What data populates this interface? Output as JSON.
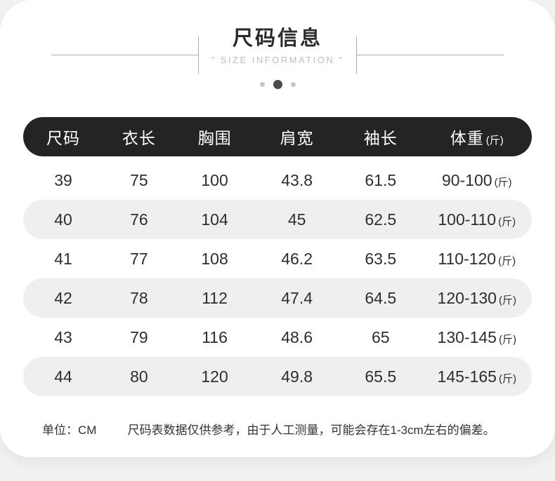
{
  "theme": {
    "page_bg": "#f1f1f2",
    "card_bg": "#ffffff",
    "table_header_bg": "#242424",
    "table_header_text": "#ffffff",
    "row_band_bg": "#efefef",
    "text_primary": "#2e2e2e",
    "title_color": "#2b2b2b",
    "subtitle_color": "#bdbdbd",
    "deco_line_color": "#ababab",
    "dot_active_color": "#4a4a4a",
    "dot_inactive_color": "#c6c6c6"
  },
  "header": {
    "title": "尺码信息",
    "subtitle": "\" SIZE INFORMATION \"",
    "dots": [
      "inactive",
      "active",
      "inactive"
    ]
  },
  "table": {
    "columns": [
      {
        "label": "尺码",
        "suffix": ""
      },
      {
        "label": "衣长",
        "suffix": ""
      },
      {
        "label": "胸围",
        "suffix": ""
      },
      {
        "label": "肩宽",
        "suffix": ""
      },
      {
        "label": "袖长",
        "suffix": ""
      },
      {
        "label": "体重",
        "suffix": "(斤)"
      }
    ],
    "rows": [
      {
        "values": [
          "39",
          "75",
          "100",
          "43.8",
          "61.5",
          "90-100"
        ],
        "suffix": "(斤)"
      },
      {
        "values": [
          "40",
          "76",
          "104",
          "45",
          "62.5",
          "100-110"
        ],
        "suffix": "(斤)"
      },
      {
        "values": [
          "41",
          "77",
          "108",
          "46.2",
          "63.5",
          "110-120"
        ],
        "suffix": "(斤)"
      },
      {
        "values": [
          "42",
          "78",
          "112",
          "47.4",
          "64.5",
          "120-130"
        ],
        "suffix": "(斤)"
      },
      {
        "values": [
          "43",
          "79",
          "116",
          "48.6",
          "65",
          "130-145"
        ],
        "suffix": "(斤)"
      },
      {
        "values": [
          "44",
          "80",
          "120",
          "49.8",
          "65.5",
          "145-165"
        ],
        "suffix": "(斤)"
      }
    ]
  },
  "footnote": {
    "unit_label": "单位：CM",
    "disclaimer": "尺码表数据仅供参考，由于人工测量，可能会存在1-3cm左右的偏差。"
  }
}
